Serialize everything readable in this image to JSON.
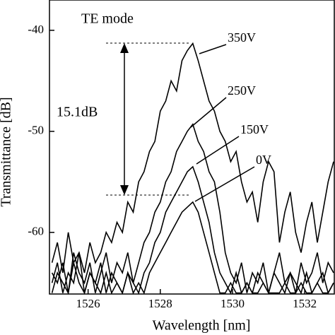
{
  "chart_data": {
    "type": "line",
    "x_label": "Wavelength [nm]",
    "y_label": "Transmittance [dB]",
    "annotations": [
      "TE mode",
      "15.1dB"
    ],
    "xlim": [
      1524.93,
      1532.82
    ],
    "xticks": [
      1526,
      1528,
      1530,
      1532
    ],
    "ylim": [
      -66.1,
      -37
    ],
    "yticks": [
      -40,
      -50,
      -60
    ],
    "x": [
      1525,
      1525.15,
      1525.3,
      1525.45,
      1525.6,
      1525.75,
      1525.9,
      1526.05,
      1526.2,
      1526.35,
      1526.5,
      1526.65,
      1526.8,
      1526.95,
      1527.1,
      1527.25,
      1527.4,
      1527.55,
      1527.7,
      1527.85,
      1528,
      1528.15,
      1528.3,
      1528.45,
      1528.6,
      1528.75,
      1528.9,
      1529.05,
      1529.2,
      1529.35,
      1529.5,
      1529.65,
      1529.8,
      1529.95,
      1530.1,
      1530.25,
      1530.4,
      1530.55,
      1530.7,
      1530.85,
      1531,
      1531.15,
      1531.3,
      1531.45,
      1531.6,
      1531.75,
      1531.9,
      1532.05,
      1532.2,
      1532.35,
      1532.5,
      1532.65,
      1532.8
    ],
    "series": [
      {
        "name": "350V",
        "color": "#000000",
        "values": [
          -63,
          -61,
          -64,
          -60,
          -63,
          -62,
          -64,
          -61,
          -63,
          -62,
          -60,
          -61,
          -59,
          -60,
          -57,
          -58,
          -55,
          -54,
          -52,
          -51,
          -48,
          -47,
          -45,
          -46,
          -43,
          -42,
          -41.3,
          -43,
          -45,
          -47,
          -48,
          -50,
          -51,
          -53,
          -52,
          -55,
          -57,
          -56,
          -59,
          -55,
          -53,
          -54,
          -61,
          -58,
          -56,
          -60,
          -62,
          -59,
          -57,
          -61,
          -58,
          -55,
          -53
        ]
      },
      {
        "name": "250V",
        "color": "#000000",
        "values": [
          -64,
          -65,
          -63,
          -66,
          -62,
          -64,
          -65,
          -63,
          -66,
          -64,
          -62,
          -65,
          -63,
          -64,
          -62,
          -65,
          -63,
          -61,
          -60,
          -58,
          -57,
          -55,
          -54,
          -52,
          -51,
          -50,
          -49.3,
          -51,
          -52,
          -54,
          -55,
          -58,
          -62,
          -64,
          -65,
          -63,
          -66,
          -64,
          -65,
          -63,
          -66,
          -64,
          -62,
          -65,
          -64,
          -66,
          -63,
          -65,
          -64,
          -62,
          -65,
          -63,
          -64
        ]
      },
      {
        "name": "150V",
        "color": "#000000",
        "values": [
          -65,
          -63,
          -66,
          -64,
          -65,
          -62,
          -66,
          -64,
          -65,
          -63,
          -66,
          -64,
          -65,
          -66,
          -64,
          -65,
          -66,
          -64,
          -63,
          -61,
          -60,
          -58,
          -57,
          -56,
          -55,
          -54,
          -53.5,
          -55,
          -57,
          -59,
          -62,
          -64,
          -65,
          -66,
          -64,
          -66,
          -65,
          -66,
          -64,
          -65,
          -66,
          -64,
          -65,
          -66,
          -64,
          -65,
          -66,
          -64,
          -66,
          -65,
          -64,
          -66,
          -65
        ]
      },
      {
        "name": "0V",
        "color": "#000000",
        "values": [
          -66,
          -64,
          -65,
          -66,
          -63,
          -65,
          -66,
          -64,
          -65,
          -66,
          -64,
          -66,
          -65,
          -66,
          -64,
          -66,
          -65,
          -66,
          -64,
          -63,
          -62,
          -61,
          -60,
          -59,
          -58,
          -57.5,
          -57,
          -58,
          -60,
          -62,
          -64,
          -66,
          -66,
          -65,
          -66,
          -66,
          -65,
          -66,
          -66,
          -65,
          -66,
          -66,
          -66,
          -65,
          -66,
          -66,
          -65,
          -66,
          -66,
          -65,
          -66,
          -66,
          -65
        ]
      }
    ]
  }
}
